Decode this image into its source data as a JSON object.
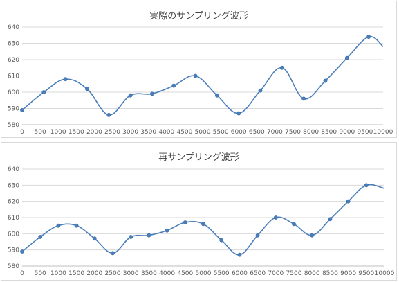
{
  "chart_data": [
    {
      "type": "line",
      "title": "実際のサンプリング波形",
      "xlabel": "",
      "ylabel": "",
      "xlim": [
        0,
        10000
      ],
      "ylim": [
        580,
        640
      ],
      "x_ticks": [
        0,
        500,
        1000,
        1500,
        2000,
        2500,
        3000,
        3500,
        4000,
        4500,
        5000,
        5500,
        6000,
        6500,
        7000,
        7500,
        8000,
        8500,
        9000,
        9500,
        10000
      ],
      "y_ticks": [
        580,
        590,
        600,
        610,
        620,
        630,
        640
      ],
      "grid": true,
      "legend": "none",
      "smooth": true,
      "series": [
        {
          "x": [
            0,
            600,
            1200,
            1800,
            2400,
            3000,
            3600,
            4200,
            4800,
            5400,
            6000,
            6600,
            7200,
            7800,
            8400,
            9000,
            9600,
            10000
          ],
          "y": [
            589,
            600,
            608,
            602,
            586,
            598,
            599,
            604,
            610,
            598,
            587,
            601,
            615,
            596,
            607,
            621,
            634,
            628
          ]
        }
      ]
    },
    {
      "type": "line",
      "title": "再サンプリング波形",
      "xlabel": "",
      "ylabel": "",
      "xlim": [
        0,
        10000
      ],
      "ylim": [
        580,
        640
      ],
      "x_ticks": [
        0,
        500,
        1000,
        1500,
        2000,
        2500,
        3000,
        3500,
        4000,
        4500,
        5000,
        5500,
        6000,
        6500,
        7000,
        7500,
        8000,
        8500,
        9000,
        9500,
        10000
      ],
      "y_ticks": [
        580,
        590,
        600,
        610,
        620,
        630,
        640
      ],
      "grid": true,
      "legend": "none",
      "smooth": true,
      "series": [
        {
          "x": [
            0,
            500,
            1000,
            1500,
            2000,
            2500,
            3000,
            3500,
            4000,
            4500,
            5000,
            5500,
            6000,
            6500,
            7000,
            7500,
            8000,
            8500,
            9000,
            9500,
            10000
          ],
          "y": [
            589,
            598,
            605,
            605,
            597,
            588,
            598,
            599,
            602,
            607,
            606,
            596,
            587,
            599,
            610,
            606,
            599,
            609,
            620,
            630,
            628
          ]
        }
      ]
    }
  ],
  "style": {
    "line_color": "#4a7ebb",
    "grid_color": "#d9d9d9"
  }
}
